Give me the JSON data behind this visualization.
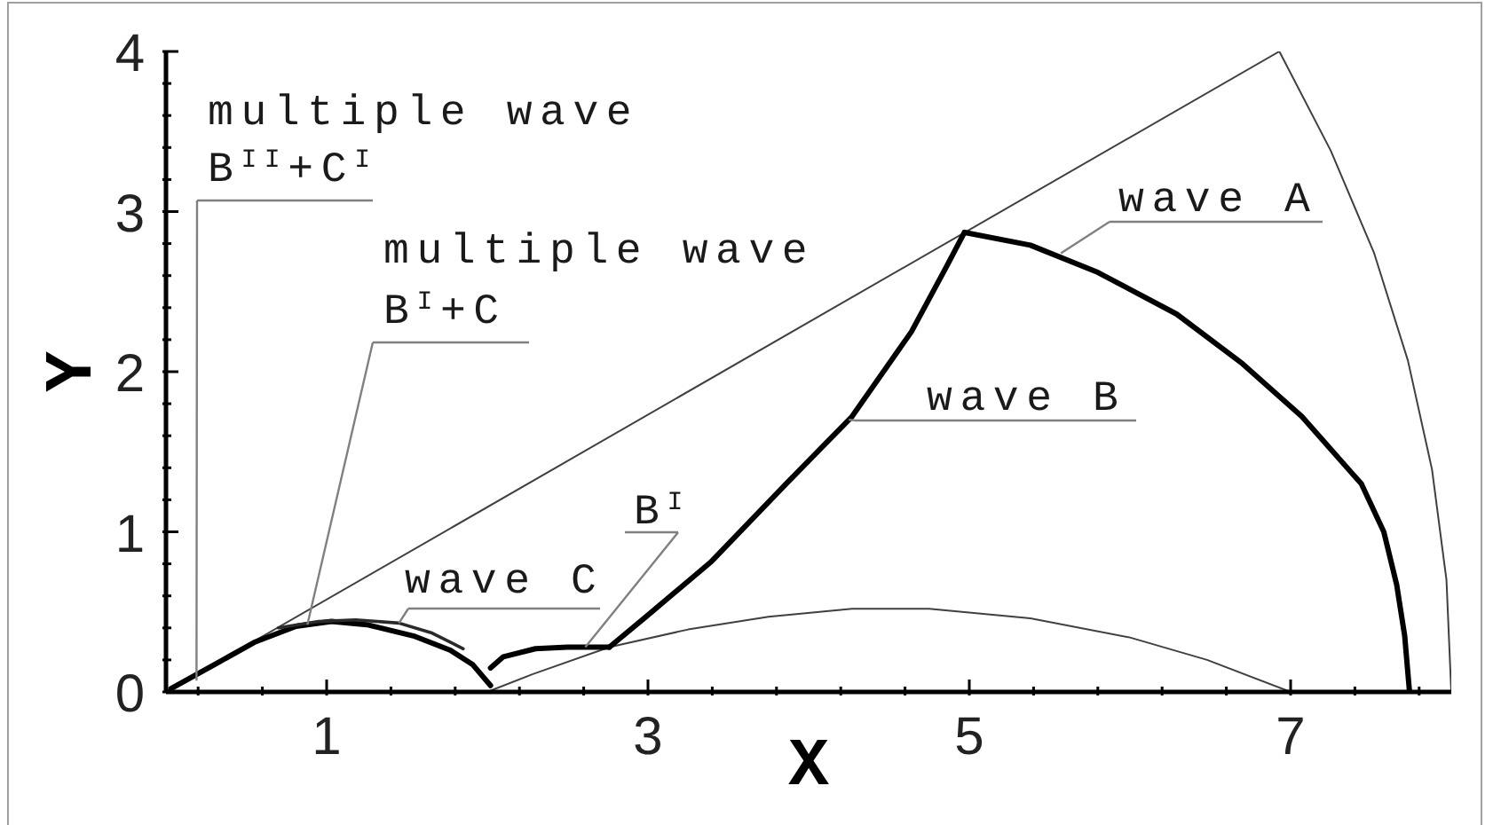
{
  "chart_data": {
    "type": "line",
    "xlabel": "X",
    "ylabel": "Y",
    "xlim": [
      0,
      8
    ],
    "ylim": [
      0,
      4
    ],
    "xticks": [
      {
        "value": 0.2,
        "label": null
      },
      {
        "value": 0.6,
        "label": null
      },
      1,
      {
        "value": 1.4,
        "label": null
      },
      {
        "value": 1.8,
        "label": null
      },
      {
        "value": 2.2,
        "label": null
      },
      {
        "value": 2.6,
        "label": null
      },
      3,
      {
        "value": 3.4,
        "label": null
      },
      {
        "value": 3.8,
        "label": null
      },
      {
        "value": 4.2,
        "label": null
      },
      {
        "value": 4.6,
        "label": null
      },
      5,
      {
        "value": 5.4,
        "label": null
      },
      {
        "value": 5.8,
        "label": null
      },
      {
        "value": 6.2,
        "label": null
      },
      {
        "value": 6.6,
        "label": null
      },
      7,
      {
        "value": 7.4,
        "label": null
      },
      {
        "value": 7.8,
        "label": null
      }
    ],
    "yticks": [
      0,
      {
        "value": 0.2,
        "label": null
      },
      {
        "value": 0.4,
        "label": null
      },
      {
        "value": 0.6,
        "label": null
      },
      {
        "value": 0.8,
        "label": null
      },
      1,
      {
        "value": 1.2,
        "label": null
      },
      {
        "value": 1.4,
        "label": null
      },
      {
        "value": 1.6,
        "label": null
      },
      {
        "value": 1.8,
        "label": null
      },
      2,
      {
        "value": 2.2,
        "label": null
      },
      {
        "value": 2.4,
        "label": null
      },
      {
        "value": 2.6,
        "label": null
      },
      {
        "value": 2.8,
        "label": null
      },
      3,
      {
        "value": 3.2,
        "label": null
      },
      {
        "value": 3.4,
        "label": null
      },
      {
        "value": 3.6,
        "label": null
      },
      {
        "value": 3.8,
        "label": null
      },
      4
    ],
    "marker": "none",
    "line_style": "solid",
    "series": [
      {
        "color": "#404040",
        "x": [
          0,
          6.93,
          7.25,
          7.52,
          7.73,
          7.88,
          7.97,
          8.0
        ],
        "values": [
          0,
          4.0,
          3.38,
          2.74,
          2.07,
          1.39,
          0.7,
          0
        ]
      },
      {
        "color": "#404040",
        "x": [
          2.0,
          2.28,
          2.76,
          3.25,
          3.75,
          4.27,
          4.75,
          5.38,
          6.0,
          6.48,
          7.0
        ],
        "values": [
          0,
          0.11,
          0.28,
          0.39,
          0.47,
          0.52,
          0.52,
          0.46,
          0.34,
          0.2,
          0
        ]
      },
      {
        "color": "#000000",
        "x": [
          4.97,
          5.38,
          5.8,
          6.29,
          6.7,
          7.07,
          7.44,
          7.58,
          7.66,
          7.71,
          7.74
        ],
        "values": [
          2.87,
          2.79,
          2.62,
          2.36,
          2.05,
          1.72,
          1.3,
          1.0,
          0.67,
          0.35,
          0
        ]
      },
      {
        "color": "#000000",
        "x": [
          2.76,
          3.0,
          3.39,
          3.86,
          4.27,
          4.64,
          4.86,
          4.97
        ],
        "values": [
          0.28,
          0.48,
          0.81,
          1.3,
          1.72,
          2.25,
          2.66,
          2.87
        ]
      },
      {
        "color": "#000000",
        "x": [
          2.02,
          2.1,
          2.3,
          2.5,
          2.76
        ],
        "values": [
          0.15,
          0.22,
          0.27,
          0.28,
          0.28
        ]
      },
      {
        "color": "#000000",
        "x": [
          0.03,
          0.3,
          0.55,
          0.81,
          1.03,
          1.25,
          1.54,
          1.77,
          1.91,
          2.02
        ],
        "values": [
          0.02,
          0.17,
          0.31,
          0.41,
          0.44,
          0.42,
          0.35,
          0.26,
          0.17,
          0.04
        ]
      },
      {
        "color": "#2a2a2a",
        "x": [
          0.7,
          0.95,
          1.18,
          1.45,
          1.65,
          1.85
        ],
        "values": [
          0.4,
          0.44,
          0.45,
          0.43,
          0.37,
          0.27
        ]
      }
    ],
    "annotations": [
      {
        "text": "multiple wave\nB$^{II}$+C$^{I}$",
        "x": 0.19,
        "y": 0.07
      },
      {
        "text": "multiple wave\nB$^{I}$+C",
        "x": 0.88,
        "y": 0.42
      },
      {
        "text": "wave C",
        "x": 1.45,
        "y": 0.43
      },
      {
        "text": "B$^{I}$",
        "x": 2.61,
        "y": 0.28
      },
      {
        "text": "wave B",
        "x": 4.25,
        "y": 1.7
      },
      {
        "text": "wave A",
        "x": 5.57,
        "y": 2.74
      }
    ]
  }
}
